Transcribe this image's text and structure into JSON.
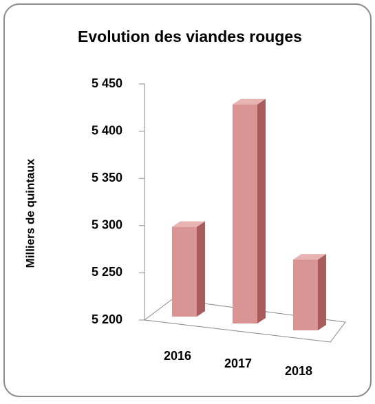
{
  "chart_data": {
    "type": "bar3d",
    "title": "Evolution des viandes rouges",
    "y_label": "Milliers de quintaux",
    "categories": [
      "2016",
      "2017",
      "2018"
    ],
    "values": [
      5295,
      5432,
      5275
    ],
    "color": "#d99594",
    "ylim": [
      5200,
      5450
    ],
    "yticks": [
      {
        "value": 5200,
        "label": "5 200"
      },
      {
        "value": 5250,
        "label": "5 250"
      },
      {
        "value": 5300,
        "label": "5 300"
      },
      {
        "value": 5350,
        "label": "5 350"
      },
      {
        "value": 5400,
        "label": "5 400"
      },
      {
        "value": 5450,
        "label": "5 450"
      }
    ]
  }
}
